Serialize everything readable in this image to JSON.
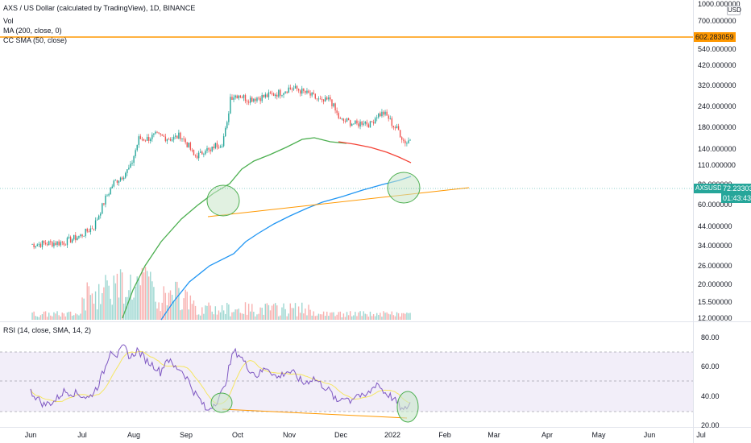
{
  "chart_title": "AXS / US Dollar (calculated by TradingView), 1D, BINANCE",
  "indicators": {
    "vol": "Vol",
    "ma200": "MA (200, close, 0)",
    "sma50": "CC SMA (50, close)",
    "rsi": "RSI (14, close, SMA, 14, 2)"
  },
  "currency": "USD",
  "symbol_tag": "AXSUSD",
  "last_price": "72.233037",
  "countdown": "01:43:43",
  "horizontal_line_price": "602.283059",
  "colors": {
    "up": "#26a69a",
    "down": "#ef5350",
    "sma50": "#4caf50",
    "ma200": "#2196f3",
    "sma_red": "#f44336",
    "trendline": "#ff9800",
    "rsi_line": "#7e57c2",
    "rsi_ma": "#f5e663",
    "rsi_band": "#ede7f6",
    "hline": "#ff9800",
    "price_tag": "#26a69a",
    "circle_fill": "#c8e6c9",
    "circle_stroke": "#4caf50"
  },
  "price_axis": {
    "scale": "log",
    "ticks": [
      "1000.000000",
      "700.000000",
      "540.000000",
      "420.000000",
      "320.000000",
      "240.000000",
      "180.000000",
      "140.000000",
      "110.000000",
      "80.000000",
      "60.000000",
      "44.000000",
      "34.000000",
      "26.000000",
      "20.000000",
      "15.500000",
      "12.000000"
    ]
  },
  "time_axis": {
    "labels": [
      "Jun",
      "Jul",
      "Aug",
      "Sep",
      "Oct",
      "Nov",
      "Dec",
      "2022",
      "Feb",
      "Mar",
      "Apr",
      "May",
      "Jun",
      "Jul"
    ]
  },
  "rsi_axis": {
    "ticks": [
      "80.00",
      "60.00",
      "40.00",
      "20.00"
    ],
    "upper_band": 70,
    "lower_band": 30,
    "mid": 50
  },
  "annotations": {
    "circles": 3,
    "trendlines": 2
  }
}
